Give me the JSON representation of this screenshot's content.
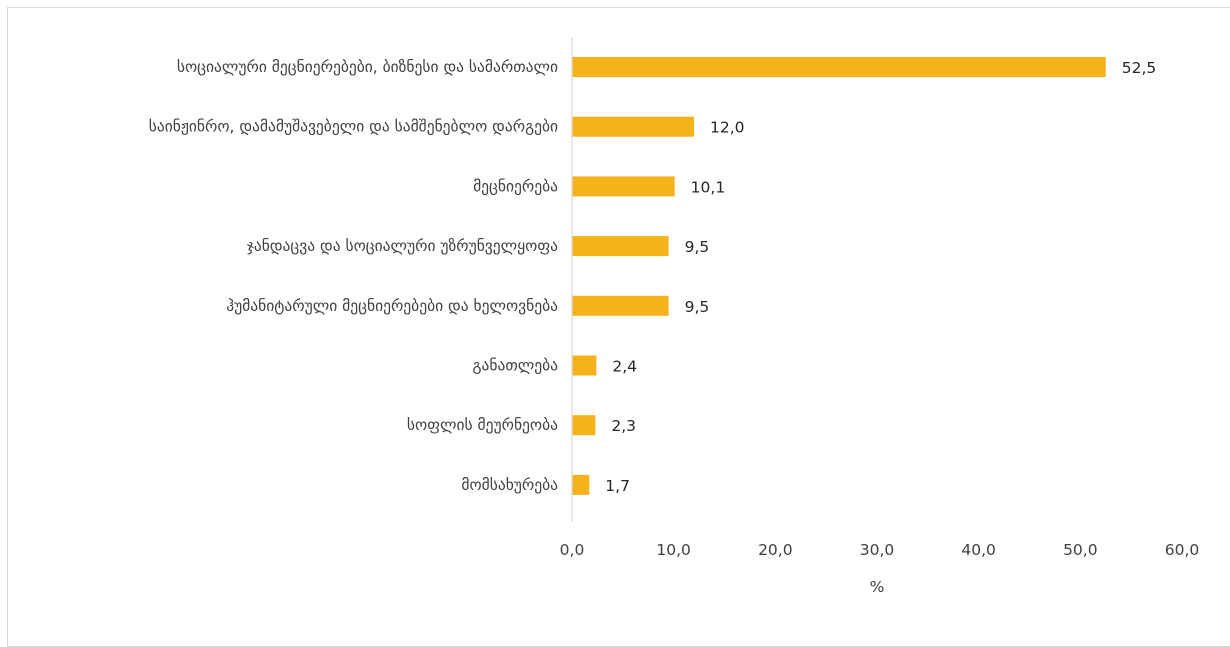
{
  "chart_data": {
    "type": "bar",
    "orientation": "horizontal",
    "categories": [
      "სოციალური მეცნიერებები, ბიზნესი და სამართალი",
      "საინჟინრო, დამამუშავებელი და სამშენებლო დარგები",
      "მეცნიერება",
      "ჯანდაცვა და სოციალური უზრუნველყოფა",
      "ჰუმანიტარული მეცნიერებები და ხელოვნება",
      "განათლება",
      "სოფლის მეურნეობა",
      "მომსახურება"
    ],
    "values": [
      52.5,
      12.0,
      10.1,
      9.5,
      9.5,
      2.4,
      2.3,
      1.7
    ],
    "value_labels": [
      "52,5",
      "12,0",
      "10,1",
      "9,5",
      "9,5",
      "2,4",
      "2,3",
      "1,7"
    ],
    "xlim": [
      0,
      60
    ],
    "x_ticks": [
      0,
      10,
      20,
      30,
      40,
      50,
      60
    ],
    "x_tick_labels": [
      "0,0",
      "10,0",
      "20,0",
      "30,0",
      "40,0",
      "50,0",
      "60,0"
    ],
    "xlabel": "%",
    "ylabel": "",
    "title": "",
    "grid": false,
    "legend": "none",
    "bar_color": "#f6b21b",
    "axis_color": "#d9d9d9"
  }
}
